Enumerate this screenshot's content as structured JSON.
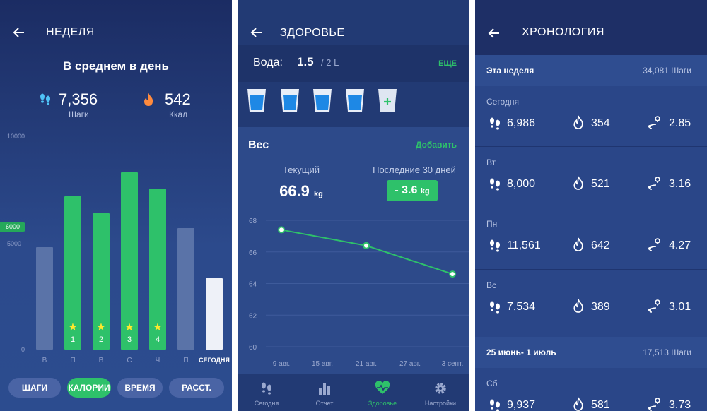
{
  "colors": {
    "accent": "#2ec16a",
    "bg_dark": "#1b2c63",
    "bar_inactive": "#5a73a8",
    "bar_today": "#eef1f8"
  },
  "p1": {
    "title": "НЕДЕЛЯ",
    "avg_title": "В среднем в день",
    "steps_value": "7,356",
    "steps_label": "Шаги",
    "kcal_value": "542",
    "kcal_label": "Ккал",
    "tabs": [
      "ШАГИ",
      "КАЛОРИИ",
      "ВРЕМЯ",
      "РАССТ."
    ],
    "active_tab": "КАЛОРИИ"
  },
  "chart_data": {
    "type": "bar",
    "categories": [
      "В",
      "П",
      "В",
      "С",
      "Ч",
      "П",
      "СЕГОДНЯ"
    ],
    "values": [
      4800,
      7200,
      6400,
      8300,
      7550,
      5700,
      3350
    ],
    "goal": 6000,
    "goal_label": "6000",
    "yticks": [
      "10000",
      "5000",
      "0"
    ],
    "ylim": [
      0,
      10000
    ],
    "achieved_numbers": [
      "1",
      "2",
      "3",
      "4"
    ],
    "achieved_indices": [
      1,
      2,
      3,
      4
    ]
  },
  "p2": {
    "title": "ЗДОРОВЬЕ",
    "water_label": "Вода:",
    "water_value": "1.5",
    "water_goal": "/ 2 L",
    "more": "ЕЩЕ",
    "glasses_filled": 4,
    "weight_title": "Вес",
    "add": "Добавить",
    "current_label": "Текущий",
    "current_value": "66.9",
    "current_unit": "kg",
    "last30_label": "Последние 30 дней",
    "last30_value": "- 3.6",
    "last30_unit": "kg",
    "nav": [
      "Сегодня",
      "Отчет",
      "Здоровье",
      "Настройки"
    ],
    "nav_active": 2
  },
  "weight_chart": {
    "type": "line",
    "x_labels": [
      "9 авг.",
      "15 авг.",
      "21 авг.",
      "27 авг.",
      "3 сент."
    ],
    "y_ticks": [
      "68",
      "66",
      "64",
      "62",
      "60"
    ],
    "ylim": [
      60,
      68
    ],
    "points": [
      {
        "x": "9 авг.",
        "y": 67.4
      },
      {
        "x": "21 авг.",
        "y": 66.4
      },
      {
        "x": "3 сент.",
        "y": 64.6
      }
    ]
  },
  "p3": {
    "title": "ХРОНОЛОГИЯ",
    "week1_label": "Эта неделя",
    "week1_total": "34,081 Шаги",
    "week2_label": "25 июнь- 1 июль",
    "week2_total": "17,513 Шаги",
    "days": [
      {
        "name": "Сегодня",
        "steps": "6,986",
        "kcal": "354",
        "dist": "2.85"
      },
      {
        "name": "Вт",
        "steps": "8,000",
        "kcal": "521",
        "dist": "3.16"
      },
      {
        "name": "Пн",
        "steps": "11,561",
        "kcal": "642",
        "dist": "4.27"
      },
      {
        "name": "Вс",
        "steps": "7,534",
        "kcal": "389",
        "dist": "3.01"
      },
      {
        "name": "Сб",
        "steps": "9,937",
        "kcal": "581",
        "dist": "3.73"
      }
    ]
  }
}
